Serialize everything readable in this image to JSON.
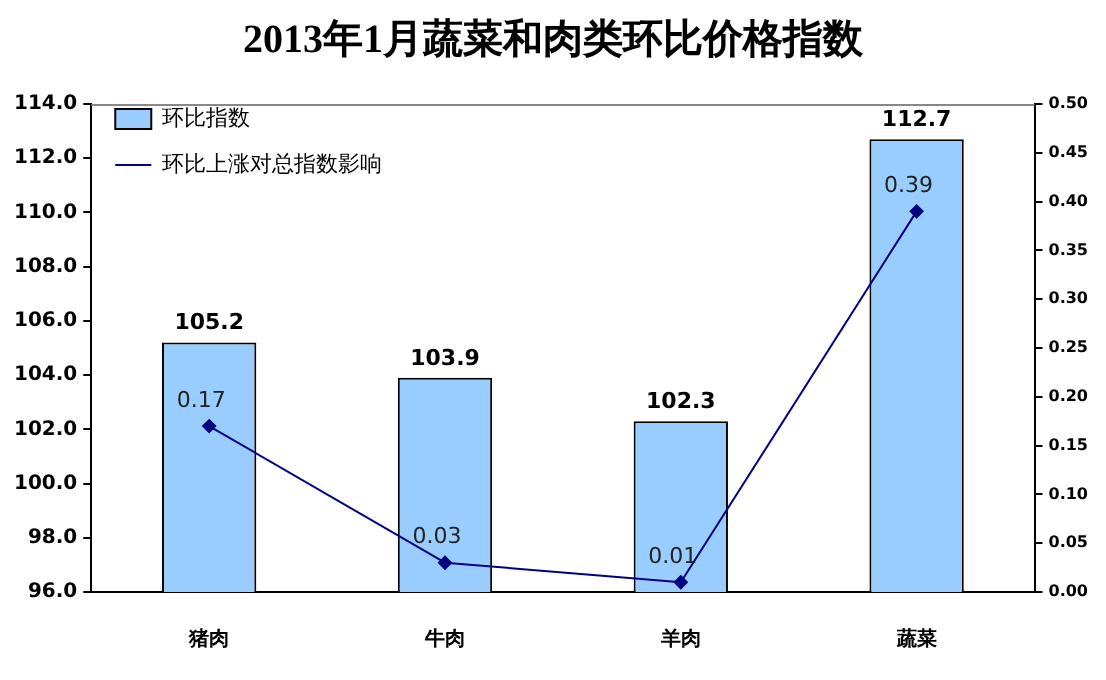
{
  "chart_data": {
    "type": "bar",
    "title": "2013年1月蔬菜和肉类环比价格指数",
    "categories": [
      "猪肉",
      "牛肉",
      "羊肉",
      "蔬菜"
    ],
    "series": [
      {
        "name": "环比指数",
        "color": "#99ccff",
        "values": [
          105.2,
          103.9,
          102.3,
          112.7
        ]
      },
      {
        "name": "环比上涨对总指数影响",
        "type": "line",
        "axis": "y2",
        "color": "#000080",
        "values": [
          0.17,
          0.03,
          0.01,
          0.39
        ]
      }
    ],
    "ylim": [
      96,
      114
    ],
    "yticks": [
      {
        "value": 96,
        "label": "96.0"
      },
      {
        "value": 98,
        "label": "98.0"
      },
      {
        "value": 100,
        "label": "100.0"
      },
      {
        "value": 102,
        "label": "102.0"
      },
      {
        "value": 104,
        "label": "104.0"
      },
      {
        "value": 106,
        "label": "106.0"
      },
      {
        "value": 108,
        "label": "108.0"
      },
      {
        "value": 110,
        "label": "110.0"
      },
      {
        "value": 112,
        "label": "112.0"
      },
      {
        "value": 114,
        "label": "114.0"
      }
    ],
    "y2lim": [
      0,
      0.5
    ],
    "y2ticks": [
      {
        "value": 0,
        "label": "0.00"
      },
      {
        "value": 0.05,
        "label": "0.05"
      },
      {
        "value": 0.1,
        "label": "0.10"
      },
      {
        "value": 0.15,
        "label": "0.15"
      },
      {
        "value": 0.2,
        "label": "0.20"
      },
      {
        "value": 0.25,
        "label": "0.25"
      },
      {
        "value": 0.3,
        "label": "0.30"
      },
      {
        "value": 0.35,
        "label": "0.35"
      },
      {
        "value": 0.4,
        "label": "0.40"
      },
      {
        "value": 0.45,
        "label": "0.45"
      },
      {
        "value": 0.5,
        "label": "0.50"
      }
    ],
    "data_labels": true,
    "legend": "top left",
    "marker": "diamond",
    "line_style": "solid",
    "grid": false
  }
}
